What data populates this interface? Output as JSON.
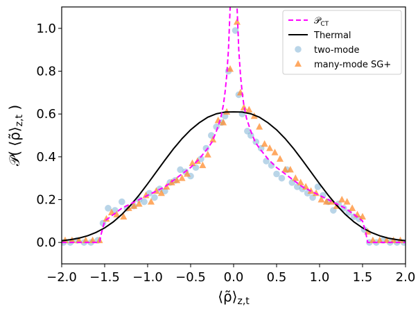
{
  "chart_data": {
    "type": "line",
    "xlabel": "⟨ρ̃⟩z,t",
    "ylabel": "𝒫( ⟨ρ̃⟩z,t )",
    "xlim": [
      -2.0,
      2.0
    ],
    "ylim": [
      -0.1,
      1.1
    ],
    "xticks": [
      -2.0,
      -1.5,
      -1.0,
      -0.5,
      0.0,
      0.5,
      1.0,
      1.5,
      2.0
    ],
    "yticks": [
      0.0,
      0.2,
      0.4,
      0.6,
      0.8,
      1.0
    ],
    "xtick_labels": [
      "−2.0",
      "−1.5",
      "−1.0",
      "−0.5",
      "0.0",
      "0.5",
      "1.0",
      "1.5",
      "2.0"
    ],
    "ytick_labels": [
      "0.0",
      "0.2",
      "0.4",
      "0.6",
      "0.8",
      "1.0"
    ],
    "grid": false,
    "legend_position": "top-right",
    "colors": {
      "p_ct": "#ff00ff",
      "thermal": "#000000",
      "two_mode": "#7fb2d5",
      "many_mode": "#ff8c2e"
    },
    "series": [
      {
        "name": "𝒫CT",
        "style": "dashed-line",
        "x": [
          -2.0,
          -1.6,
          -1.56,
          -1.54,
          -1.5,
          -1.4,
          -1.3,
          -1.2,
          -1.1,
          -1.0,
          -0.9,
          -0.8,
          -0.7,
          -0.6,
          -0.5,
          -0.4,
          -0.3,
          -0.25,
          -0.2,
          -0.15,
          -0.12,
          -0.1,
          -0.08,
          -0.06,
          -0.05,
          -0.04,
          -0.03,
          0.03,
          0.04,
          0.05,
          0.06,
          0.08,
          0.1,
          0.12,
          0.15,
          0.2,
          0.25,
          0.3,
          0.4,
          0.5,
          0.6,
          0.7,
          0.8,
          0.9,
          1.0,
          1.1,
          1.2,
          1.3,
          1.4,
          1.5,
          1.54,
          1.56,
          1.6,
          2.0
        ],
        "y": [
          0.0,
          0.0,
          0.0,
          0.04,
          0.1,
          0.13,
          0.16,
          0.18,
          0.2,
          0.22,
          0.24,
          0.26,
          0.29,
          0.32,
          0.35,
          0.39,
          0.44,
          0.47,
          0.52,
          0.58,
          0.64,
          0.7,
          0.78,
          0.9,
          1.0,
          1.1,
          1.2,
          1.2,
          1.1,
          1.0,
          0.9,
          0.78,
          0.7,
          0.64,
          0.58,
          0.52,
          0.47,
          0.44,
          0.39,
          0.35,
          0.32,
          0.29,
          0.26,
          0.24,
          0.22,
          0.2,
          0.18,
          0.16,
          0.13,
          0.1,
          0.04,
          0.0,
          0.0,
          0.0
        ]
      },
      {
        "name": "Thermal",
        "style": "solid-line",
        "x": [
          -2.0,
          -1.9,
          -1.8,
          -1.7,
          -1.6,
          -1.5,
          -1.4,
          -1.3,
          -1.2,
          -1.1,
          -1.0,
          -0.9,
          -0.8,
          -0.7,
          -0.6,
          -0.5,
          -0.4,
          -0.3,
          -0.2,
          -0.1,
          0.0,
          0.1,
          0.2,
          0.3,
          0.4,
          0.5,
          0.6,
          0.7,
          0.8,
          0.9,
          1.0,
          1.1,
          1.2,
          1.3,
          1.4,
          1.5,
          1.6,
          1.7,
          1.8,
          1.9,
          2.0
        ],
        "y": [
          0.008,
          0.013,
          0.02,
          0.031,
          0.047,
          0.068,
          0.096,
          0.131,
          0.173,
          0.221,
          0.274,
          0.329,
          0.384,
          0.437,
          0.485,
          0.526,
          0.559,
          0.585,
          0.601,
          0.609,
          0.61,
          0.609,
          0.601,
          0.585,
          0.559,
          0.526,
          0.485,
          0.437,
          0.384,
          0.329,
          0.274,
          0.221,
          0.173,
          0.131,
          0.096,
          0.068,
          0.047,
          0.031,
          0.02,
          0.013,
          0.008
        ]
      },
      {
        "name": "two-mode",
        "style": "circle-markers",
        "x": [
          -1.98,
          -1.9,
          -1.82,
          -1.74,
          -1.66,
          -1.58,
          -1.52,
          -1.46,
          -1.38,
          -1.3,
          -1.24,
          -1.16,
          -1.1,
          -1.04,
          -0.98,
          -0.92,
          -0.86,
          -0.8,
          -0.74,
          -0.68,
          -0.62,
          -0.56,
          -0.5,
          -0.44,
          -0.38,
          -0.32,
          -0.26,
          -0.2,
          -0.14,
          -0.1,
          -0.06,
          0.02,
          0.06,
          0.1,
          0.16,
          0.2,
          0.26,
          0.32,
          0.38,
          0.44,
          0.5,
          0.56,
          0.62,
          0.68,
          0.74,
          0.8,
          0.86,
          0.92,
          0.98,
          1.04,
          1.1,
          1.16,
          1.22,
          1.28,
          1.34,
          1.4,
          1.46,
          1.52,
          1.58,
          1.66,
          1.74,
          1.82,
          1.9,
          1.98
        ],
        "y": [
          0.0,
          0.0,
          0.01,
          0.0,
          0.0,
          0.01,
          0.09,
          0.16,
          0.15,
          0.19,
          0.16,
          0.17,
          0.2,
          0.19,
          0.23,
          0.21,
          0.25,
          0.24,
          0.28,
          0.29,
          0.34,
          0.33,
          0.31,
          0.35,
          0.39,
          0.44,
          0.5,
          0.54,
          0.56,
          0.59,
          0.8,
          0.99,
          0.69,
          0.6,
          0.52,
          0.5,
          0.47,
          0.44,
          0.38,
          0.36,
          0.32,
          0.3,
          0.34,
          0.28,
          0.26,
          0.25,
          0.23,
          0.21,
          0.26,
          0.22,
          0.19,
          0.15,
          0.18,
          0.16,
          0.14,
          0.12,
          0.11,
          0.06,
          0.0,
          0.0,
          0.01,
          0.0,
          0.0,
          0.0
        ]
      },
      {
        "name": "many-mode SG+",
        "style": "triangle-markers",
        "x": [
          -1.96,
          -1.88,
          -1.8,
          -1.72,
          -1.64,
          -1.56,
          -1.48,
          -1.42,
          -1.36,
          -1.28,
          -1.22,
          -1.16,
          -1.1,
          -1.02,
          -0.96,
          -0.9,
          -0.84,
          -0.78,
          -0.72,
          -0.66,
          -0.6,
          -0.54,
          -0.48,
          -0.42,
          -0.36,
          -0.3,
          -0.24,
          -0.18,
          -0.12,
          -0.08,
          -0.04,
          0.04,
          0.08,
          0.12,
          0.18,
          0.24,
          0.3,
          0.36,
          0.42,
          0.48,
          0.54,
          0.6,
          0.66,
          0.72,
          0.78,
          0.84,
          0.9,
          0.96,
          1.02,
          1.08,
          1.14,
          1.2,
          1.26,
          1.32,
          1.38,
          1.44,
          1.5,
          1.56,
          1.62,
          1.7,
          1.78,
          1.86,
          1.94
        ],
        "y": [
          0.01,
          0.01,
          0.01,
          0.01,
          0.01,
          0.01,
          0.11,
          0.14,
          0.13,
          0.12,
          0.16,
          0.17,
          0.18,
          0.22,
          0.19,
          0.24,
          0.23,
          0.26,
          0.28,
          0.29,
          0.3,
          0.32,
          0.37,
          0.38,
          0.36,
          0.41,
          0.48,
          0.57,
          0.56,
          0.61,
          0.81,
          1.03,
          0.7,
          0.63,
          0.62,
          0.59,
          0.54,
          0.46,
          0.44,
          0.42,
          0.39,
          0.34,
          0.34,
          0.3,
          0.28,
          0.26,
          0.24,
          0.23,
          0.2,
          0.19,
          0.19,
          0.17,
          0.2,
          0.19,
          0.16,
          0.13,
          0.12,
          0.05,
          0.01,
          0.01,
          0.01,
          0.01,
          0.01
        ]
      }
    ],
    "legend": [
      {
        "label": "𝒫CT",
        "key": "p_ct"
      },
      {
        "label": "Thermal",
        "key": "thermal"
      },
      {
        "label": "two-mode",
        "key": "two_mode"
      },
      {
        "label": "many-mode SG+",
        "key": "many_mode"
      }
    ]
  }
}
